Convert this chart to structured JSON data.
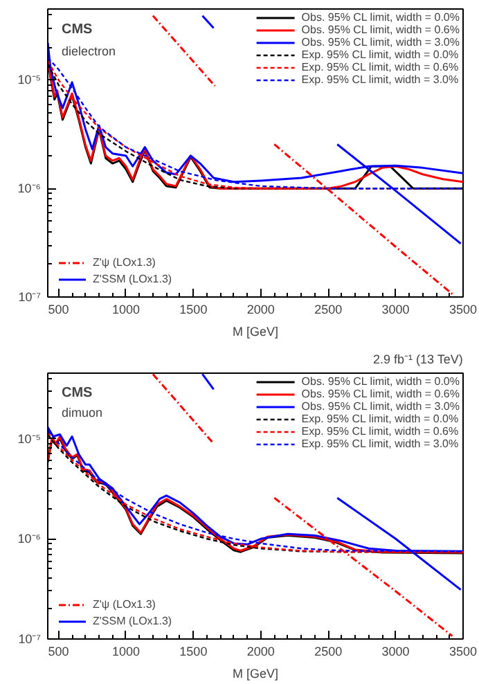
{
  "chart_data": [
    {
      "type": "line",
      "xlabel": "M [GeV]",
      "xlim": [
        420,
        3500
      ],
      "xticks": [
        500,
        1000,
        1500,
        2000,
        2500,
        3000,
        3500
      ],
      "ylim": [
        1e-07,
        4.5e-05
      ],
      "yticks": [
        {
          "value": 1e-07,
          "label": "10⁻⁷"
        },
        {
          "value": 1e-06,
          "label": "10⁻⁶"
        },
        {
          "value": 1e-05,
          "label": "10⁻⁵"
        }
      ],
      "log": true,
      "grid": false,
      "legend": "top right",
      "annotations": [
        "CMS",
        "dielectron"
      ],
      "series": [
        {
          "name": "Obs. 95% CL limit, width = 0.0%",
          "color": "#000000",
          "line_style": "solid",
          "x": [
            420,
            440,
            470,
            490,
            530,
            600,
            650,
            700,
            740,
            800,
            850,
            900,
            950,
            1000,
            1050,
            1100,
            1140,
            1200,
            1250,
            1300,
            1370,
            1480,
            1550,
            1620,
            1700,
            2000,
            2500,
            2700,
            2820,
            2960,
            3130,
            3300,
            3500
          ],
          "values": [
            1.55e-05,
            1.05e-05,
            6.6e-06,
            7.6e-06,
            4.3e-06,
            7.2e-06,
            4.3e-06,
            2.4e-06,
            1.7e-06,
            3.5e-06,
            1.9e-06,
            1.7e-06,
            1.8e-06,
            1.5e-06,
            1.15e-06,
            1.7e-06,
            2.25e-06,
            1.45e-06,
            1.25e-06,
            1.05e-06,
            1.02e-06,
            1.95e-06,
            1.45e-06,
            1.02e-06,
            1e-06,
            1e-06,
            1e-06,
            1e-06,
            1.6e-06,
            1.6e-06,
            1e-06,
            1e-06,
            1e-06
          ]
        },
        {
          "name": "Obs. 95% CL limit, width = 0.6%",
          "color": "#ff0000",
          "line_style": "solid",
          "x": [
            420,
            440,
            470,
            490,
            530,
            600,
            650,
            700,
            740,
            800,
            850,
            900,
            950,
            1000,
            1050,
            1100,
            1140,
            1200,
            1250,
            1300,
            1370,
            1480,
            1550,
            1620,
            1700,
            2000,
            2500,
            2600,
            2700,
            2800,
            2900,
            3000,
            3100,
            3200,
            3350,
            3500
          ],
          "values": [
            1.6e-05,
            1.1e-05,
            7e-06,
            8e-06,
            4.5e-06,
            7.5e-06,
            4.5e-06,
            2.5e-06,
            1.8e-06,
            3.6e-06,
            2e-06,
            1.8e-06,
            1.9e-06,
            1.6e-06,
            1.2e-06,
            1.8e-06,
            2.3e-06,
            1.5e-06,
            1.3e-06,
            1.1e-06,
            1.05e-06,
            2e-06,
            1.5e-06,
            1.05e-06,
            1e-06,
            1e-06,
            1e-06,
            1.05e-06,
            1.15e-06,
            1.35e-06,
            1.55e-06,
            1.6e-06,
            1.5e-06,
            1.35e-06,
            1.22e-06,
            1.15e-06
          ]
        },
        {
          "name": "Obs. 95% CL limit, width = 3.0%",
          "color": "#0000ff",
          "line_style": "solid",
          "x": [
            420,
            440,
            480,
            530,
            600,
            650,
            700,
            750,
            800,
            850,
            900,
            1000,
            1050,
            1100,
            1140,
            1200,
            1300,
            1370,
            1480,
            1550,
            1650,
            1800,
            2000,
            2300,
            2600,
            2800,
            3000,
            3200,
            3500
          ],
          "values": [
            2.2e-05,
            1.3e-05,
            8e-06,
            5.5e-06,
            9.5e-06,
            6e-06,
            3.5e-06,
            2.3e-06,
            3.8e-06,
            2.4e-06,
            2.1e-06,
            2e-06,
            1.6e-06,
            2e-06,
            2.4e-06,
            1.8e-06,
            1.4e-06,
            1.35e-06,
            2e-06,
            1.7e-06,
            1.25e-06,
            1.15e-06,
            1.18e-06,
            1.25e-06,
            1.45e-06,
            1.6e-06,
            1.62e-06,
            1.55e-06,
            1.38e-06
          ]
        },
        {
          "name": "Exp. 95% CL limit, width = 0.0%",
          "color": "#000000",
          "line_style": "dashed",
          "x": [
            420,
            500,
            600,
            700,
            800,
            1000,
            1200,
            1400,
            1600,
            1800,
            3500
          ],
          "values": [
            1.4e-05,
            9e-06,
            6e-06,
            4.2e-06,
            3.2e-06,
            2.2e-06,
            1.6e-06,
            1.2e-06,
            1.05e-06,
            1e-06,
            1e-06
          ]
        },
        {
          "name": "Exp. 95% CL limit, width = 0.6%",
          "color": "#ff0000",
          "line_style": "dashed",
          "x": [
            420,
            500,
            600,
            800,
            1000,
            1200,
            1400,
            1600,
            1800,
            2000,
            3500
          ],
          "values": [
            1.5e-05,
            1e-05,
            6.8e-06,
            3.6e-06,
            2.4e-06,
            1.75e-06,
            1.3e-06,
            1.1e-06,
            1.02e-06,
            1e-06,
            1e-06
          ]
        },
        {
          "name": "Exp. 95% CL limit, width = 3.0%",
          "color": "#0000ff",
          "line_style": "dashed",
          "x": [
            420,
            500,
            600,
            700,
            800,
            1000,
            1400,
            1670,
            2000,
            2500,
            3500
          ],
          "values": [
            1.6e-05,
            1.25e-05,
            8.4e-06,
            5.5e-06,
            3.7e-06,
            2.4e-06,
            1.44e-06,
            1.19e-06,
            1.05e-06,
            1e-06,
            1e-06
          ]
        },
        {
          "name": "Z'ψ (LOx1.3)",
          "color": "#ff0000",
          "line_style": "dotted",
          "x": [
            1200,
            1660,
            1900,
            2100,
            2470,
            3000,
            3430
          ],
          "values": [
            3.9e-05,
            8.8e-06,
            null,
            2.55e-06,
            1.05e-06,
            2.9e-07,
            1.04e-07
          ]
        },
        {
          "name": "Z'SSM (LOx1.3)",
          "color": "#0000ff",
          "line_style": "solid",
          "x": [
            1567,
            1650,
            2100,
            2567,
            3000,
            3483
          ],
          "values": [
            3.9e-05,
            3e-05,
            null,
            2.55e-06,
            9.5e-07,
            3.1e-07
          ]
        }
      ]
    },
    {
      "type": "line",
      "title": "2.9 fb⁻¹ (13 TeV)",
      "xlabel": "M [GeV]",
      "xlim": [
        420,
        3500
      ],
      "xticks": [
        500,
        1000,
        1500,
        2000,
        2500,
        3000,
        3500
      ],
      "ylim": [
        1e-07,
        4.5e-05
      ],
      "yticks": [
        {
          "value": 1e-07,
          "label": "10⁻⁷"
        },
        {
          "value": 1e-06,
          "label": "10⁻⁶"
        },
        {
          "value": 1e-05,
          "label": "10⁻⁵"
        }
      ],
      "log": true,
      "grid": false,
      "legend": "top right",
      "annotations": [
        "CMS",
        "dimuon"
      ],
      "series": [
        {
          "name": "Obs. 95% CL limit, width = 0.0%",
          "color": "#000000",
          "line_style": "solid",
          "x": [
            420,
            450,
            480,
            510,
            550,
            600,
            640,
            680,
            730,
            780,
            850,
            900,
            1000,
            1050,
            1110,
            1170,
            1230,
            1300,
            1400,
            1500,
            1600,
            1700,
            1800,
            1850,
            1950,
            2050,
            2200,
            2400,
            2550,
            2700,
            2900,
            3500
          ],
          "values": [
            5.8e-06,
            9.7e-06,
            8.7e-06,
            1e-05,
            7.7e-06,
            6.3e-06,
            6.8e-06,
            4.8e-06,
            4.6e-06,
            3.7e-06,
            3.5e-06,
            2.9e-06,
            1.95e-06,
            1.35e-06,
            1.12e-06,
            1.55e-06,
            2.1e-06,
            2.4e-06,
            2.05e-06,
            1.65e-06,
            1.25e-06,
            9.7e-07,
            7.7e-07,
            7.4e-07,
            8.3e-07,
            1.03e-06,
            1.08e-06,
            1.03e-06,
            9.3e-07,
            7.7e-07,
            7.3e-07,
            7.2e-07
          ]
        },
        {
          "name": "Obs. 95% CL limit, width = 0.6%",
          "color": "#ff0000",
          "line_style": "solid",
          "x": [
            420,
            450,
            480,
            510,
            550,
            600,
            640,
            680,
            730,
            780,
            850,
            900,
            1000,
            1050,
            1110,
            1170,
            1230,
            1300,
            1400,
            1500,
            1600,
            1700,
            1800,
            1850,
            1950,
            2050,
            2200,
            2400,
            2550,
            2700,
            2900,
            3500
          ],
          "values": [
            6e-06,
            1e-05,
            9e-06,
            1.05e-05,
            8e-06,
            6.5e-06,
            7e-06,
            5e-06,
            4.8e-06,
            3.8e-06,
            3.6e-06,
            3e-06,
            2e-06,
            1.4e-06,
            1.15e-06,
            1.6e-06,
            2.2e-06,
            2.5e-06,
            2.1e-06,
            1.7e-06,
            1.3e-06,
            1e-06,
            8e-07,
            7.6e-07,
            8.5e-07,
            1.05e-06,
            1.1e-06,
            1.05e-06,
            9.5e-07,
            7.8e-07,
            7.4e-07,
            7.3e-07
          ]
        },
        {
          "name": "Obs. 95% CL limit, width = 3.0%",
          "color": "#0000ff",
          "line_style": "solid",
          "x": [
            420,
            460,
            510,
            560,
            600,
            650,
            700,
            730,
            800,
            900,
            1000,
            1100,
            1170,
            1250,
            1300,
            1400,
            1500,
            1600,
            1700,
            1800,
            1900,
            2000,
            2200,
            2400,
            2600,
            2800,
            3000,
            3500
          ],
          "values": [
            1.3e-05,
            1.05e-05,
            1.1e-05,
            8.5e-06,
            1.05e-05,
            7e-06,
            5.5e-06,
            5.5e-06,
            4e-06,
            3.2e-06,
            2.1e-06,
            1.4e-06,
            1.8e-06,
            2.5e-06,
            2.7e-06,
            2.3e-06,
            1.8e-06,
            1.35e-06,
            1.05e-06,
            9e-07,
            8.8e-07,
            1e-06,
            1.12e-06,
            1.08e-06,
            9.5e-07,
            8e-07,
            7.6e-07,
            7.5e-07
          ]
        },
        {
          "name": "Exp. 95% CL limit, width = 0.0%",
          "color": "#000000",
          "line_style": "dashed",
          "x": [
            420,
            500,
            600,
            800,
            1000,
            1200,
            1400,
            1600,
            1800,
            2000,
            2300,
            2600,
            3500
          ],
          "values": [
            1.1e-05,
            8e-06,
            5.8e-06,
            3.3e-06,
            2.1e-06,
            1.5e-06,
            1.2e-06,
            1e-06,
            8.7e-07,
            8e-07,
            7.5e-07,
            7.4e-07,
            7.4e-07
          ]
        },
        {
          "name": "Exp. 95% CL limit, width = 0.6%",
          "color": "#ff0000",
          "line_style": "dashed",
          "x": [
            420,
            500,
            600,
            800,
            1000,
            1200,
            1400,
            1600,
            1800,
            2000,
            2300,
            2600,
            3500
          ],
          "values": [
            1.15e-05,
            8.4e-06,
            6.1e-06,
            3.5e-06,
            2.2e-06,
            1.6e-06,
            1.25e-06,
            1.05e-06,
            9e-07,
            8.2e-07,
            7.6e-07,
            7.4e-07,
            7.4e-07
          ]
        },
        {
          "name": "Exp. 95% CL limit, width = 3.0%",
          "color": "#0000ff",
          "line_style": "dashed",
          "x": [
            420,
            500,
            600,
            800,
            1000,
            1200,
            1400,
            1600,
            1800,
            2000,
            2300,
            2600,
            3500
          ],
          "values": [
            1.2e-05,
            9e-06,
            6.5e-06,
            3.8e-06,
            2.5e-06,
            1.8e-06,
            1.4e-06,
            1.15e-06,
            1e-06,
            9e-07,
            8e-07,
            7.6e-07,
            7.5e-07
          ]
        },
        {
          "name": "Z'ψ (LOx1.3)",
          "color": "#ff0000",
          "line_style": "dotted",
          "x": [
            1200,
            1650,
            1900,
            2100,
            2470,
            3000,
            3420
          ],
          "values": [
            4.4e-05,
            8.9e-06,
            null,
            2.56e-06,
            1.06e-06,
            3e-07,
            1.07e-07
          ]
        },
        {
          "name": "Z'SSM (LOx1.3)",
          "color": "#0000ff",
          "line_style": "solid",
          "x": [
            1567,
            1650,
            2100,
            2567,
            3000,
            3483
          ],
          "values": [
            4.4e-05,
            3.1e-05,
            null,
            2.56e-06,
            1e-06,
            3.1e-07
          ]
        }
      ]
    }
  ]
}
